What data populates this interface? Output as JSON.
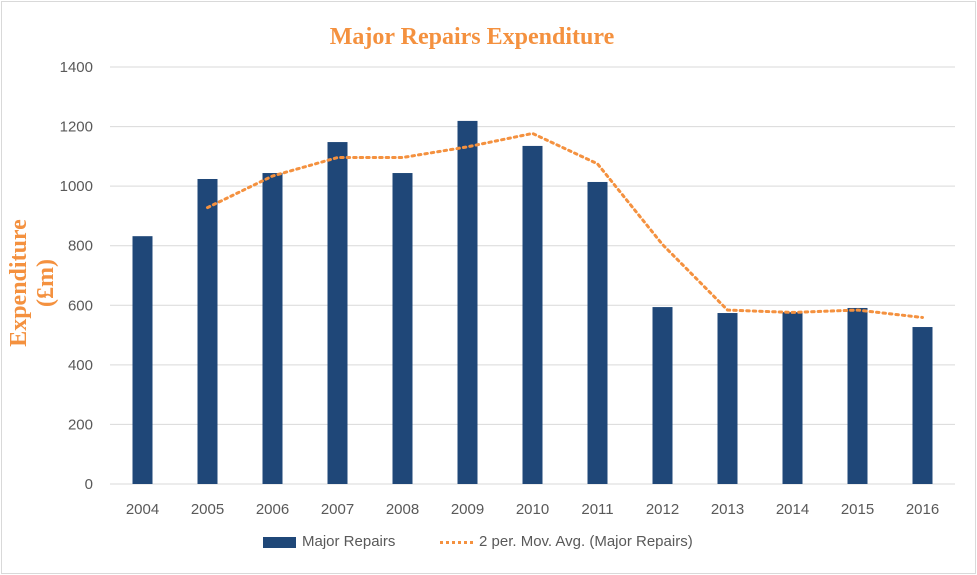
{
  "chart_data": {
    "type": "bar",
    "title": "Major Repairs Expenditure",
    "xlabel": "",
    "ylabel": "Expenditure (£m)",
    "ylim": [
      0,
      1400
    ],
    "yticks": [
      0,
      200,
      400,
      600,
      800,
      1000,
      1200,
      1400
    ],
    "grid": true,
    "legend_position": "bottom",
    "categories": [
      "2004",
      "2005",
      "2006",
      "2007",
      "2008",
      "2009",
      "2010",
      "2011",
      "2012",
      "2013",
      "2014",
      "2015",
      "2016"
    ],
    "series": [
      {
        "name": "Major Repairs",
        "type": "bar",
        "color": "#1f4778",
        "values": [
          832,
          1024,
          1044,
          1148,
          1044,
          1219,
          1135,
          1014,
          594,
          574,
          577,
          591,
          527
        ]
      },
      {
        "name": "2 per. Mov. Avg. (Major Repairs)",
        "type": "line",
        "style": "dotted",
        "color": "#f4913f",
        "values": [
          null,
          928,
          1034,
          1096,
          1096,
          1132,
          1177,
          1075,
          804,
          584,
          576,
          584,
          559
        ]
      }
    ]
  }
}
